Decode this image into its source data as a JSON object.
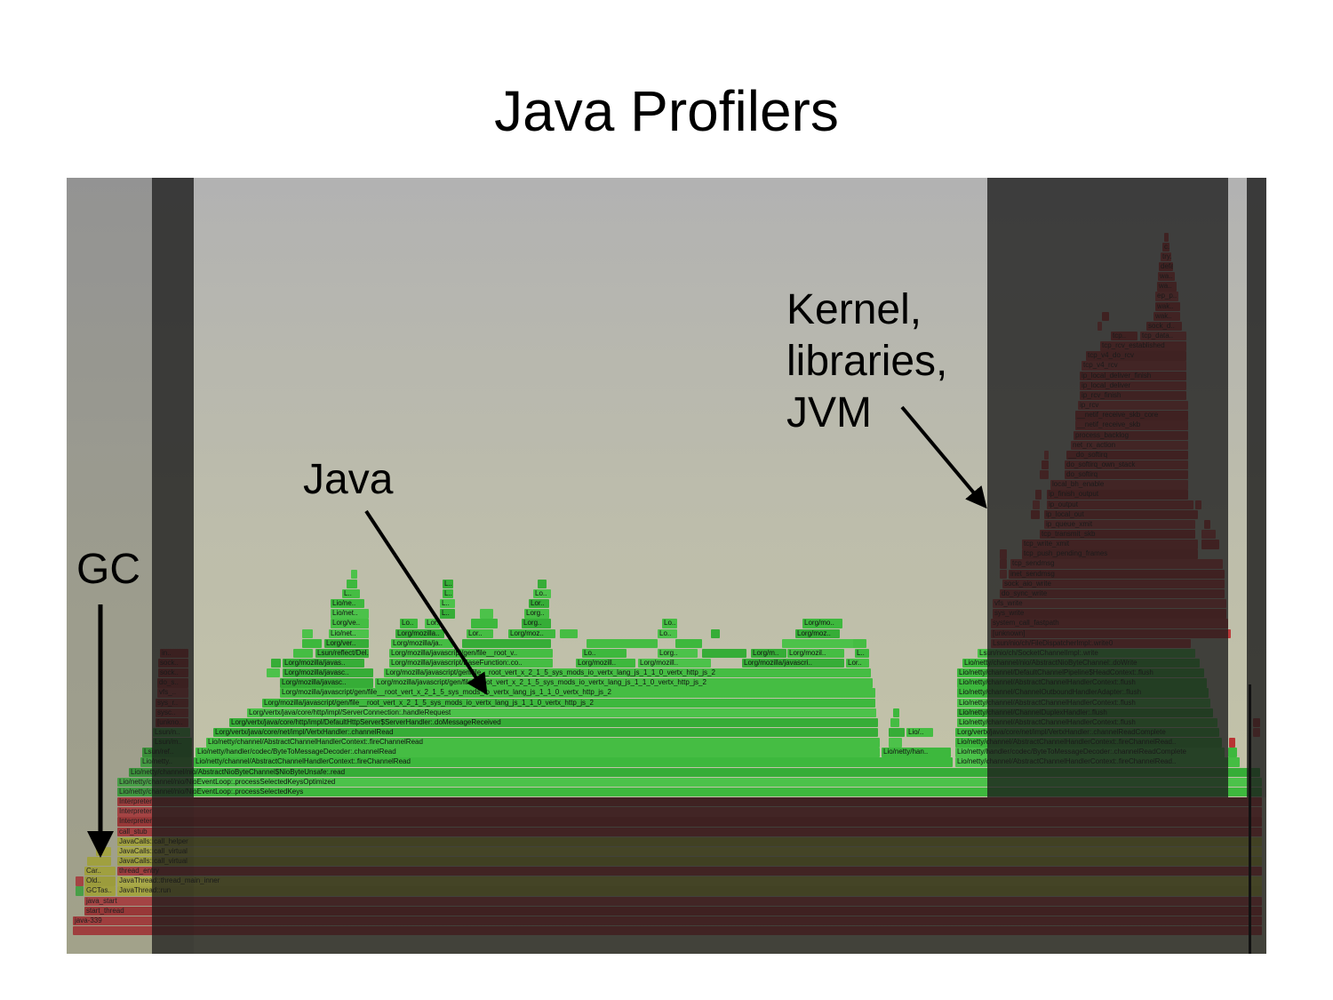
{
  "slide": {
    "title": "Java Profilers"
  },
  "annotations": {
    "gc": "GC",
    "java": "Java",
    "kernel": "Kernel,\nlibraries,\nJVM"
  },
  "colors": {
    "java": "#3cba3c",
    "native": "#c23c3c",
    "jvm": "#c6c640"
  },
  "flame": {
    "labels": [
      "java-339",
      "start_thread",
      "java_start",
      "GCTas..",
      "JavaThread::run",
      "Old..",
      "JavaThread::thread_main_inner",
      "Car..",
      "thread_entry",
      "JavaCalls::call_virtual",
      "JavaCalls::call_virtual",
      "JavaCalls::call_helper",
      "call_stub",
      "Interpreter",
      "Interpreter",
      "Interpreter",
      "Lio/netty/channel/nio/NioEventLoop:.processSelectedKeys",
      "Lio/netty/channel/nio/NioEventLoop:.processSelectedKeysOptimized",
      "Lio/netty/channel/nio/AbstractNioByteChannel$NioByteUnsafe:.read",
      "Lio/netty..",
      "Lio/netty/channel/AbstractChannelHandlerContext:.fireChannelRead",
      "Lio/netty/channel/AbstractChannelHandlerContext:.fireChannelRead..",
      "Lsun/ref..",
      "Lio/netty/handler/codec/ByteToMessageDecoder:.channelRead",
      "Lio/netty/han..",
      "Lio/netty/handler/codec/ByteToMessageDecoder:.channelReadComplete",
      "Lsun/m..",
      "Lio/netty/channel/AbstractChannelHandlerContext:.fireChannelRead",
      "Lio/netty/channel/AbstractChannelHandlerContext:.fireChannelRead..",
      "Lsun/n..",
      "Lorg/vertx/java/core/net/impl/VertxHandler:.channelRead",
      "Lio/..",
      "Lorg/vertx/java/core/net/impl/VertxHandler:.channelReadComplete",
      "[unkno..",
      "Lorg/vertx/java/core/http/impl/DefaultHttpServer$ServerHandler:.doMessageReceived",
      "Lio/netty/channel/AbstractChannelHandlerContext:.flush",
      "sysc..",
      "Lorg/vertx/java/core/http/impl/ServerConnection:.handleRequest",
      "Lio/netty/channel/ChannelDuplexHandler:.flush",
      "sys_r..",
      "Lorg/mozilla/javascript/gen/file__root_vert_x_2_1_5_sys_mods_io_vertx_lang_js_1_1_0_vertx_http_js_2",
      "Lio/netty/channel/AbstractChannelHandlerContext:.flush",
      "vfs_..",
      "Lorg/mozilla/javascript/gen/file__root_vert_x_2_1_5_sys_mods_io_vertx_lang_js_1_1_0_vertx_http_js_2",
      "Lio/netty/channel/ChannelOutboundHandlerAdapter:.flush",
      "do_s..",
      "Lorg/mozilla/javasc..",
      "Lorg/mozilla/javascript/gen/file__root_vert_x_2_1_5_sys_mods_io_vertx_lang_js_1_1_0_vertx_http_js_2",
      "Lio/netty/channel/AbstractChannelHandlerContext:.flush",
      "sock..",
      "Lorg/mozilla/javasc..",
      "Lorg/mozilla/javascript/gen/file__root_vert_x_2_1_5_sys_mods_io_vertx_lang_js_1_1_0_vertx_http_js_2",
      "Lio/netty/channel/DefaultChannelPipeline$HeadContext:.flush",
      "sock..",
      "Lorg/mozilla/javas..",
      "Lorg/mozilla/javascript/BaseFunction:.co..",
      "Lorg/mozill..",
      "Lorg/mozill..",
      "Lorg/mozilla/javascri..",
      "Lor..",
      "Lio/netty/channel/nio/AbstractNioByteChannel:.doWrite",
      "in..",
      "Lsun/reflect/Del..",
      "Lorg/mozilla/javascript/gen/file__root_v..",
      "Lo..",
      "Lorg..",
      "Lorg/m..",
      "Lorg/mozil..",
      "L..",
      "Lsun/nio/ch/SocketChannelImpl:.write",
      "Lorg/ver..",
      "Lorg/mozilla/ja..",
      "Lsun/nio/ch/FileDispatcherImpl:.write0",
      "Lio/net..",
      "Lorg/mozilla..",
      "Lor..",
      "Lorg/moz..",
      "Lo..",
      "Lorg/moz..",
      "Lorg/ve..",
      "Lo..",
      "Lor..",
      "Lorg..",
      "Lo..",
      "Lorg/mo..",
      "Lio/net..",
      "L..",
      "Lorg..",
      "Lio/ne..",
      "L..",
      "Lor..",
      "L..",
      "L..",
      "Lo..",
      "L..",
      "[unknown]",
      "system_call_fastpath",
      "sys_write",
      "vfs_write",
      "do_sync_write",
      "sock_aio_write",
      "inet_sendmsg",
      "tcp_sendmsg",
      "tcp_push_pending_frames",
      "tcp_write_xmit",
      "tcp_transmit_skb",
      "ip_queue_xmit",
      "ip_local_out",
      "ip_output",
      "ip_finish_output",
      "local_bh_enable",
      "do_softirq",
      "do_softirq_own_stack",
      "__do_softirq",
      "net_rx_action",
      "process_backlog",
      "__netif_receive_skb",
      "__netif_receive_skb_core",
      "ip_rcv",
      "ip_rcv_finish",
      "ip_local_deliver",
      "ip_local_deliver_finish",
      "tcp_v4_rcv",
      "tcp_v4_do_rcv",
      "tcp_rcv_established",
      "tcp..",
      "tcp_data..",
      "sock_d..",
      "wak..",
      "wak..",
      "ep_p..",
      "wa..",
      "wa..",
      "defa..",
      "try..",
      "c.."
    ]
  }
}
